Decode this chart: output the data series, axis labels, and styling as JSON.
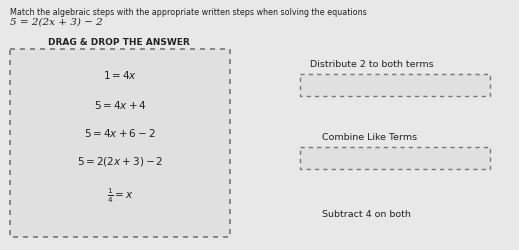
{
  "title_line1": "Match the algebraic steps with the appropriate written steps when solving the equations",
  "title_line2": "5 = 2(2x + 3) − 2",
  "drag_drop_label": "DRAG & DROP THE ANSWER",
  "left_box_equations": [
    "1 = 4x",
    "5 = 4x + 4",
    "5 = 4x + 6 − 2",
    "5 = 2(2x + 3) − 2",
    "\\frac{1}{4} = x"
  ],
  "right_labels": [
    "Distribute 2 to both terms",
    "Combine Like Terms",
    "Subtract 4 on both"
  ],
  "bg_color": "#e8e8e8",
  "left_box_bg": "#e0e0e0",
  "right_box_bg": "#e0e0e0",
  "text_color": "#222222",
  "dashed_color": "#777777",
  "title_fontsize": 5.8,
  "eq_fontsize": 7.5,
  "label_fontsize": 6.8
}
